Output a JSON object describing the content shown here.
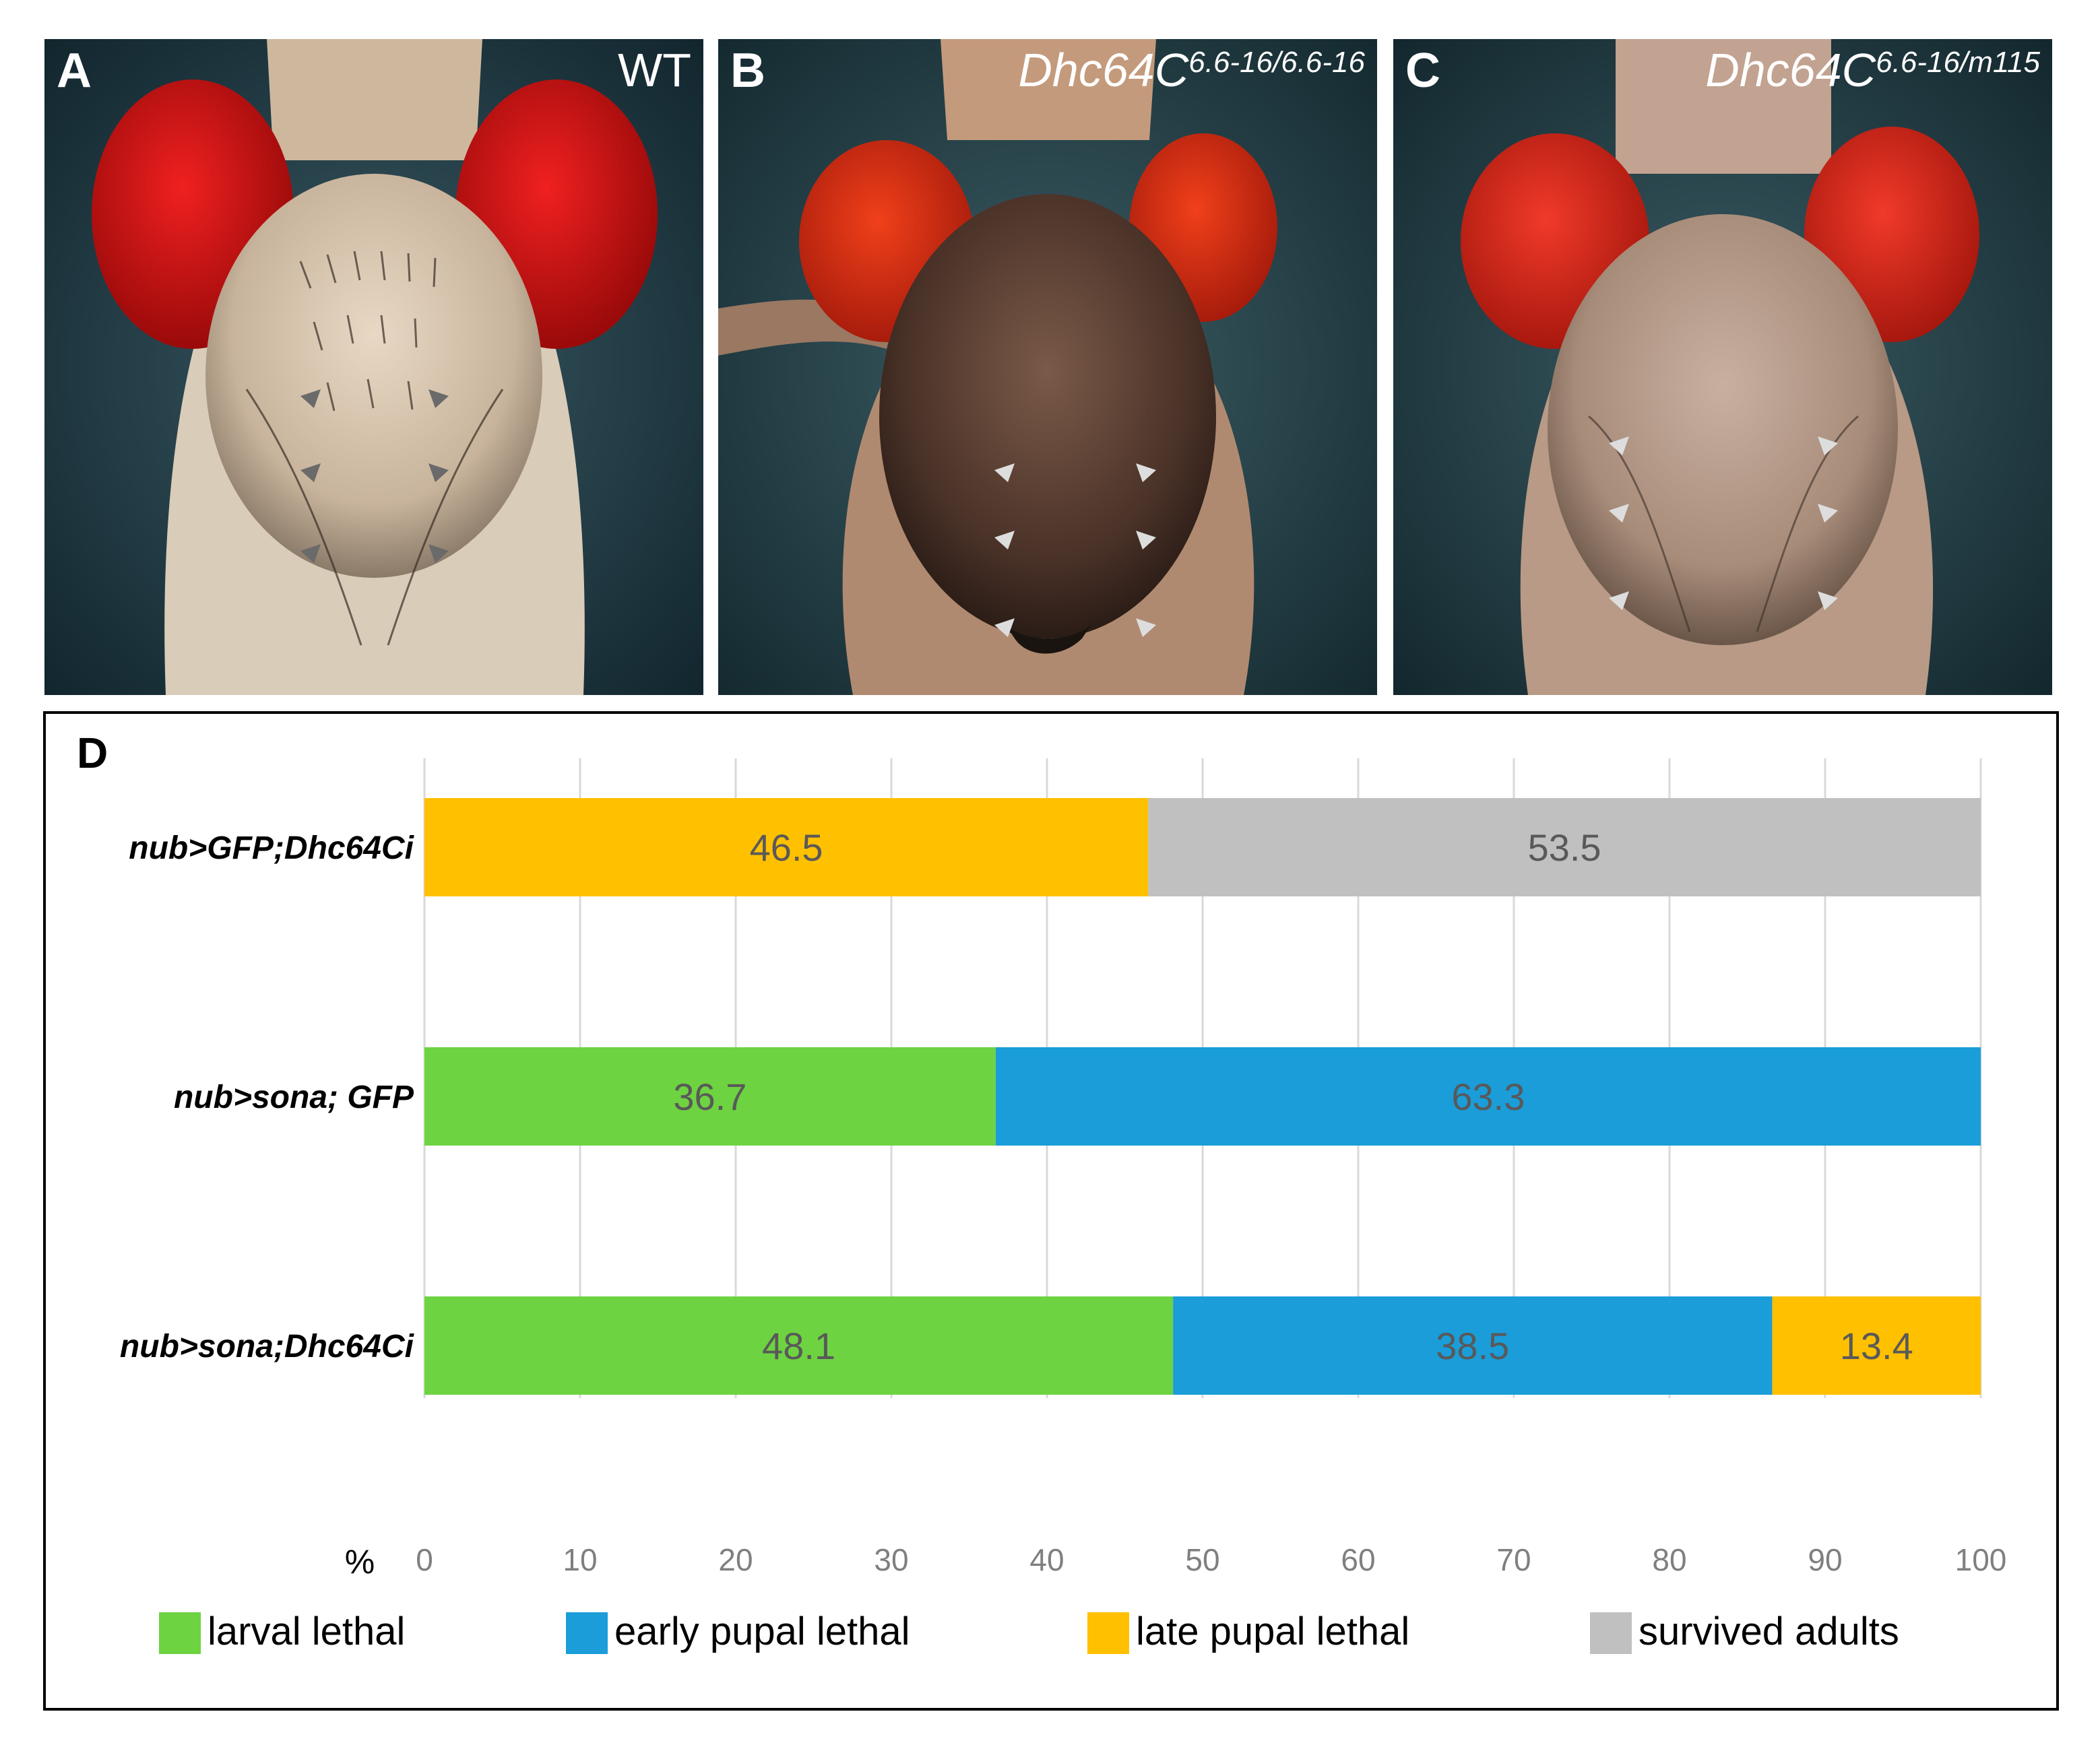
{
  "panels": [
    {
      "letter": "A",
      "genotype": "WT",
      "sup": ""
    },
    {
      "letter": "B",
      "genotype": "Dhc64C",
      "sup": "6.6-16/6.6-16"
    },
    {
      "letter": "C",
      "genotype": "Dhc64C",
      "sup": "6.6-16/m115"
    }
  ],
  "chart_data": {
    "panel_letter": "D",
    "type": "bar",
    "orientation": "horizontal",
    "stacked": true,
    "xlabel": "%",
    "xlim": [
      0,
      100
    ],
    "ticks": [
      0,
      10,
      20,
      30,
      40,
      50,
      60,
      70,
      80,
      90,
      100
    ],
    "grid": true,
    "categories": [
      "nub>GFP;Dhc64Ci",
      "nub>sona; GFP",
      "nub>sona;Dhc64Ci"
    ],
    "series": [
      {
        "name": "larval lethal",
        "color": "#6dd341",
        "values": [
          0,
          36.7,
          48.1
        ],
        "labels": [
          "",
          "36.7",
          "48.1"
        ]
      },
      {
        "name": "early pupal lethal",
        "color": "#1a9dd9",
        "values": [
          0,
          63.3,
          38.5
        ],
        "labels": [
          "",
          "63.3",
          "38.5"
        ]
      },
      {
        "name": "late pupal lethal",
        "color": "#ffc000",
        "values": [
          46.5,
          0,
          13.4
        ],
        "labels": [
          "46.5",
          "",
          "13.4"
        ]
      },
      {
        "name": "survived adults",
        "color": "#c0c0c0",
        "values": [
          53.5,
          0,
          0
        ],
        "labels": [
          "53.5",
          "",
          ""
        ]
      }
    ],
    "legend_position": "bottom"
  }
}
